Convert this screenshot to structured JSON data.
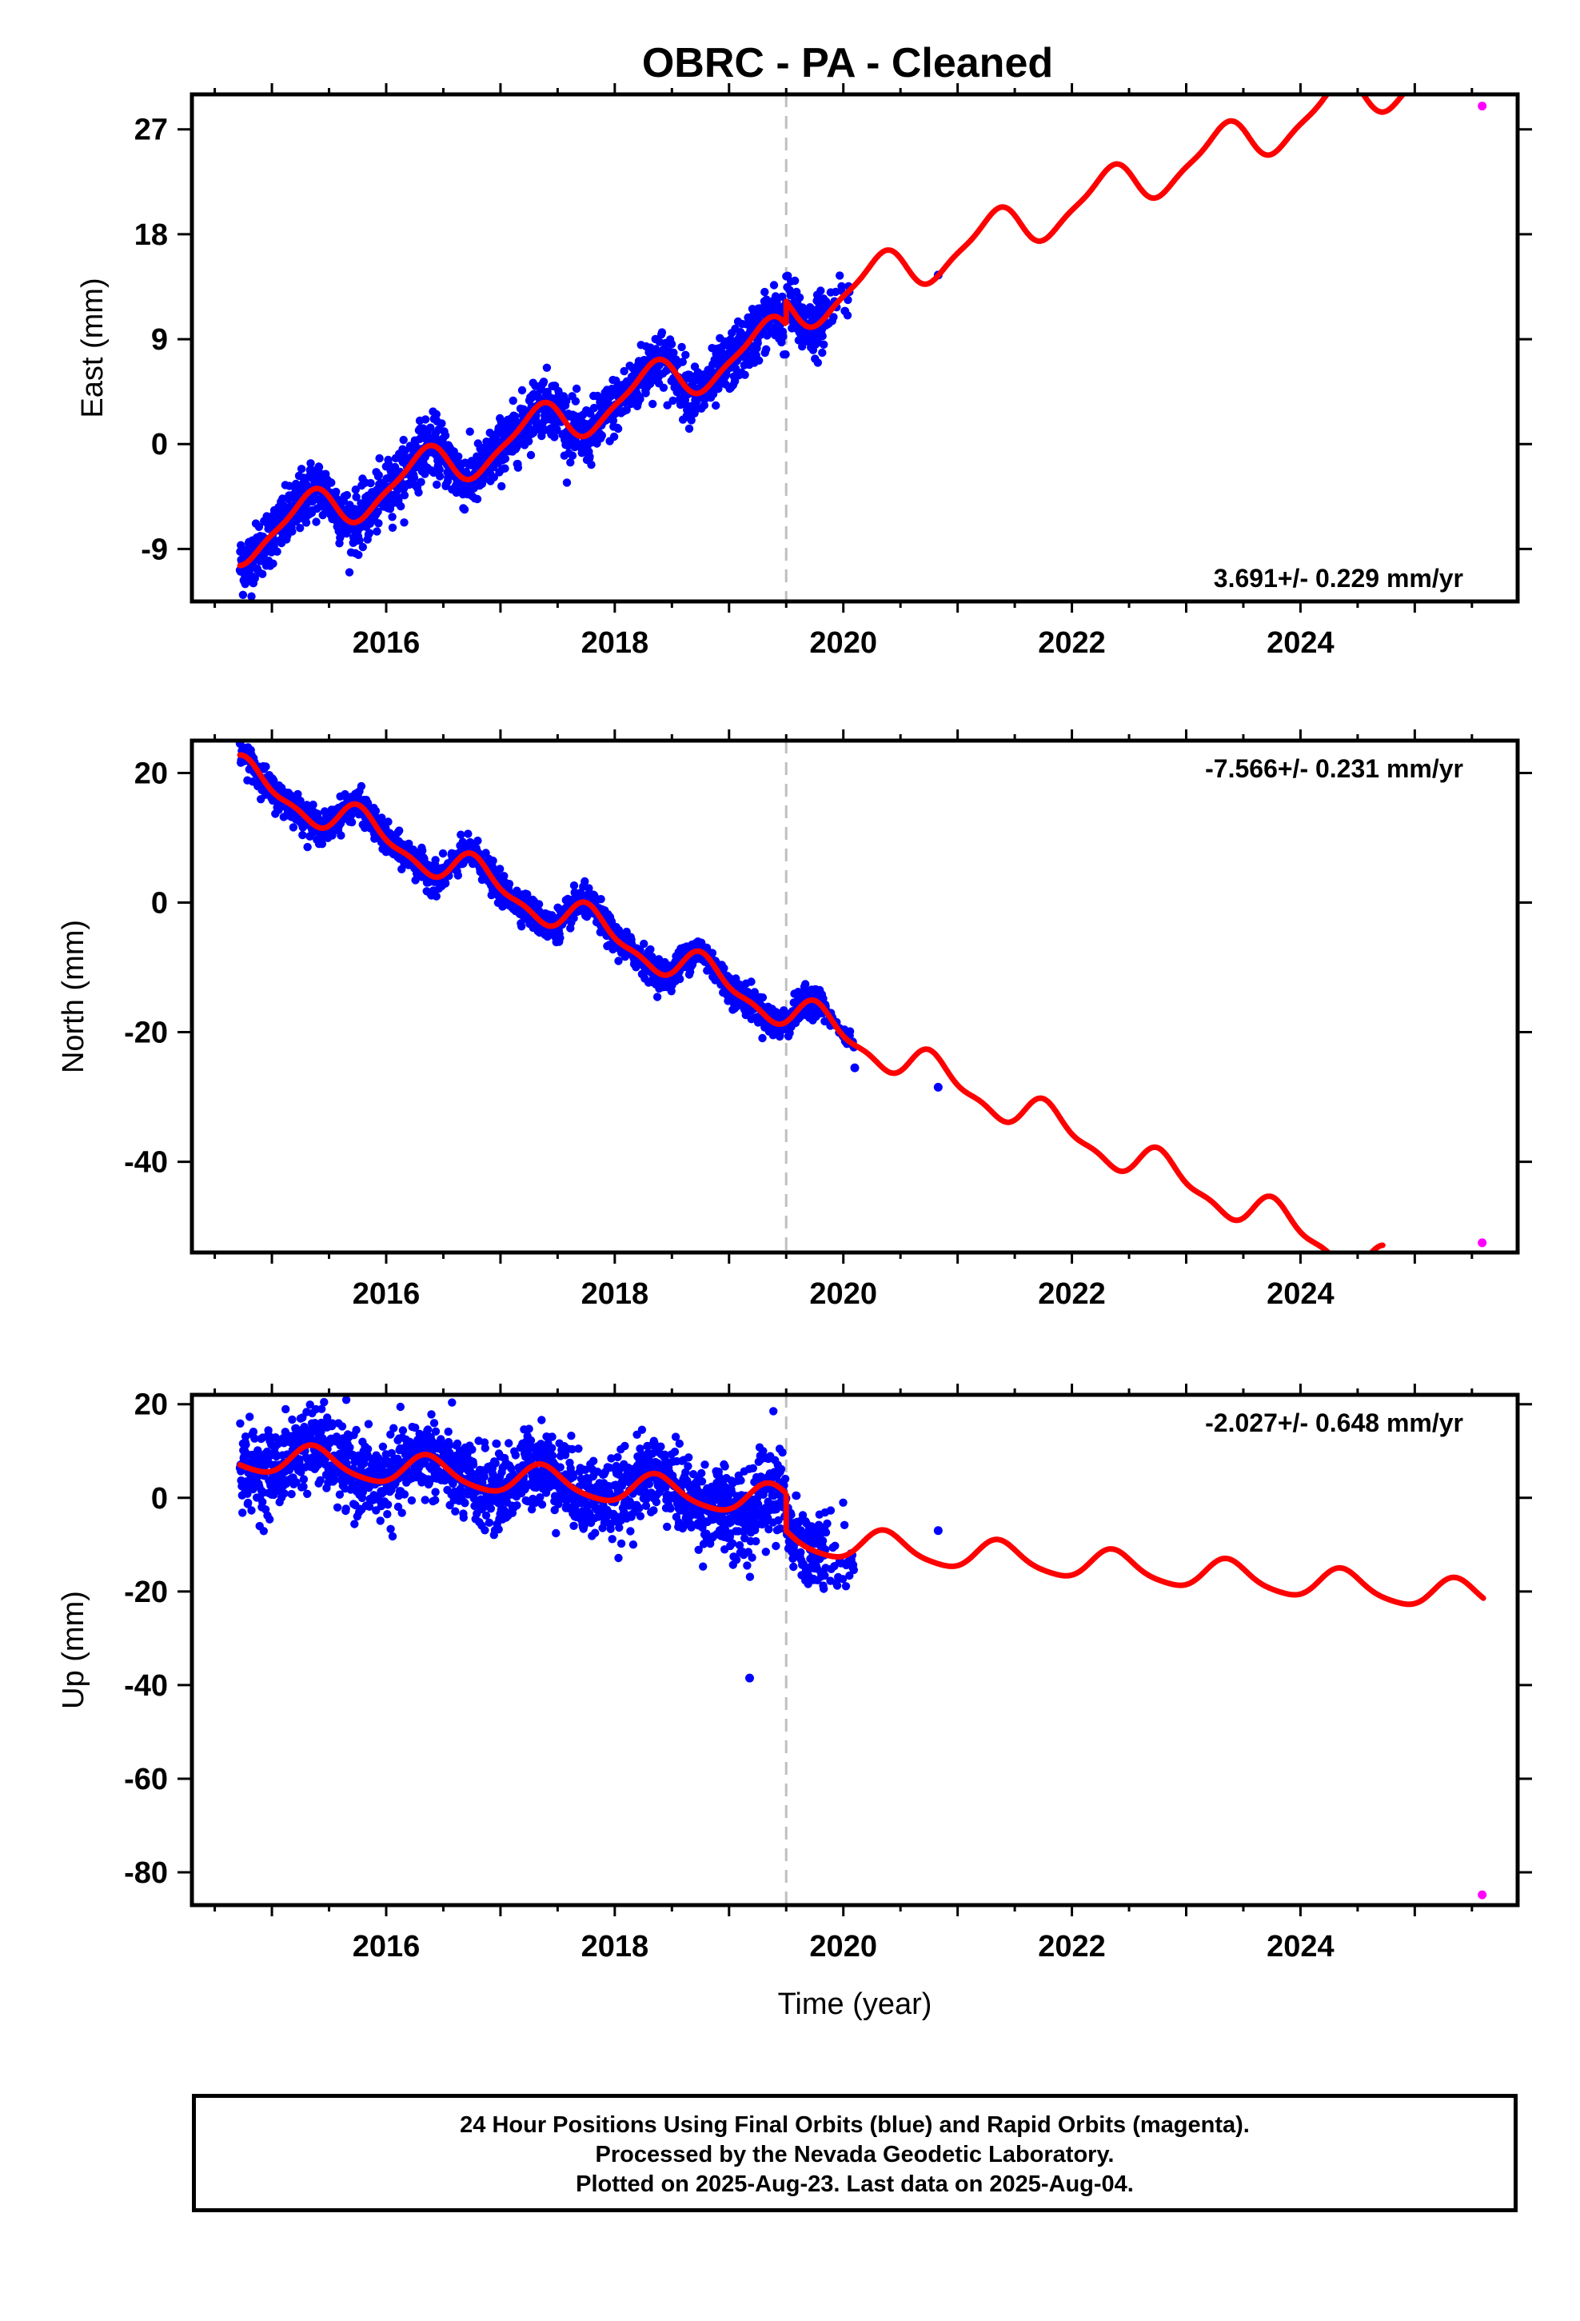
{
  "title": "OBRC  - PA - Cleaned",
  "colors": {
    "final": "#0000ff",
    "rapid": "#ff00ff",
    "model": "#ff0000",
    "break": "#bfbfbf"
  },
  "chart_data": [
    {
      "type": "scatter",
      "id": "east",
      "ylabel": "East (mm)",
      "xlim": [
        2014.3,
        2025.9
      ],
      "ylim": [
        -13.5,
        30
      ],
      "yticks": [
        -9,
        0,
        9,
        18,
        27
      ],
      "xticks": [
        2016,
        2018,
        2020,
        2022,
        2024
      ],
      "rate_label": "3.691+/- 0.229 mm/yr",
      "rate_position": "bottom-right",
      "break_x": 2019.5,
      "final_points": {
        "x_range": [
          2014.72,
          2020.1
        ],
        "extra": [
          [
            2020.83,
            14.5
          ]
        ]
      },
      "rapid_points": [
        [
          2025.59,
          29.0
        ]
      ],
      "model": {
        "x0": 2014.72,
        "y0": -8.4,
        "rate": 3.691,
        "annual_amp": 1.9,
        "annual_phase": 0.06,
        "semi_amp": 0.5,
        "semi_phase": 0.3,
        "offset_at_break": 2.0,
        "end_x": 2025.9
      }
    },
    {
      "type": "scatter",
      "id": "north",
      "ylabel": "North (mm)",
      "xlim": [
        2014.3,
        2025.9
      ],
      "ylim": [
        -54,
        25
      ],
      "yticks": [
        -40,
        -20,
        0,
        20
      ],
      "xticks": [
        2016,
        2018,
        2020,
        2022,
        2024
      ],
      "rate_label": "-7.566+/- 0.231 mm/yr",
      "rate_position": "top-right",
      "break_x": 2019.5,
      "final_points": {
        "x_range": [
          2014.72,
          2020.1
        ],
        "extra": [
          [
            2020.1,
            -25.5
          ],
          [
            2020.83,
            -28.5
          ]
        ]
      },
      "rapid_points": [
        [
          2025.59,
          -52.5
        ]
      ],
      "model": {
        "x0": 2014.72,
        "y0": 19.5,
        "rate": -7.566,
        "annual_amp": 2.6,
        "annual_phase": 0.55,
        "semi_amp": 1.0,
        "semi_phase": 0.1,
        "offset_at_break": 0,
        "end_x": 2024.72
      }
    },
    {
      "type": "scatter",
      "id": "up",
      "ylabel": "Up (mm)",
      "xlim": [
        2014.3,
        2025.9
      ],
      "ylim": [
        -87,
        22
      ],
      "yticks": [
        -80,
        -60,
        -40,
        -20,
        0,
        20
      ],
      "xticks": [
        2016,
        2018,
        2020,
        2022,
        2024
      ],
      "xlabel": "Time (year)",
      "rate_label": "-2.027+/- 0.648 mm/yr",
      "rate_position": "top-right",
      "break_x": 2019.5,
      "final_points": {
        "x_range": [
          2014.72,
          2020.1
        ],
        "extra": [
          [
            2019.18,
            -38.5
          ],
          [
            2020.83,
            -7.0
          ]
        ]
      },
      "rapid_points": [
        [
          2025.59,
          -84.8
        ]
      ],
      "model": {
        "x0": 2014.72,
        "y0": 8.8,
        "rate": -2.027,
        "annual_amp": 3.2,
        "annual_phase": 0.12,
        "semi_amp": 0.6,
        "semi_phase": 0.2,
        "offset_at_break": -8.0,
        "end_x": 2025.6
      }
    }
  ],
  "footer": {
    "line1": "24 Hour Positions Using Final Orbits (blue) and Rapid Orbits (magenta).",
    "line2": "Processed by the Nevada Geodetic Laboratory.",
    "line3": "Plotted on 2025-Aug-23. Last data on 2025-Aug-04."
  }
}
